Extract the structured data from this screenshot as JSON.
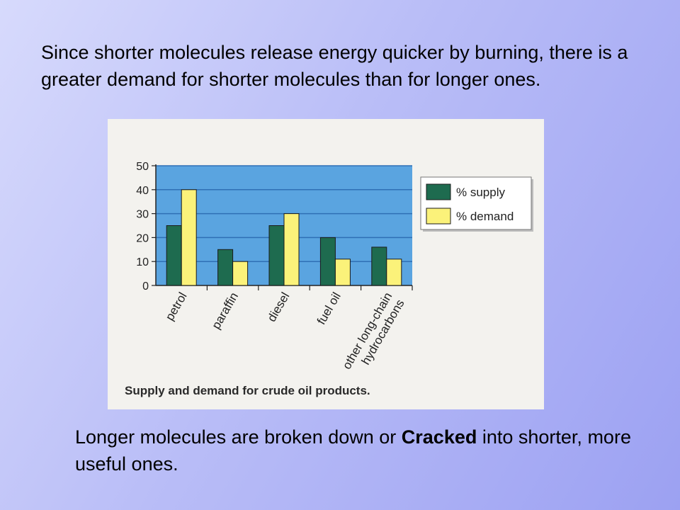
{
  "slide": {
    "intro_text": "Since shorter molecules release energy quicker by burning, there is a greater demand for shorter molecules than for longer ones.",
    "outro_before": "Longer molecules are broken down or ",
    "outro_bold": "Cracked",
    "outro_after": " into shorter, more useful ones."
  },
  "chart_data": {
    "type": "bar",
    "title": "Supply and demand for crude oil products.",
    "categories": [
      "petrol",
      "paraffin",
      "diesel",
      "fuel oil",
      "other long-chain hydrocarbons"
    ],
    "category_lines": [
      [
        "petrol"
      ],
      [
        "paraffin"
      ],
      [
        "diesel"
      ],
      [
        "fuel oil"
      ],
      [
        "other long-chain",
        "hydrocarbons"
      ]
    ],
    "series": [
      {
        "name": "% supply",
        "values": [
          25,
          15,
          25,
          20,
          16
        ],
        "color": "#1e6b4f"
      },
      {
        "name": "% demand",
        "values": [
          40,
          10,
          30,
          11,
          11
        ],
        "color": "#fbf27a"
      }
    ],
    "yticks": [
      0,
      10,
      20,
      30,
      40,
      50
    ],
    "ylim": [
      0,
      50
    ],
    "grid": true,
    "legend_position": "top-right",
    "plot_background": "#5aa4e0",
    "grid_color": "#2f6fb5"
  }
}
